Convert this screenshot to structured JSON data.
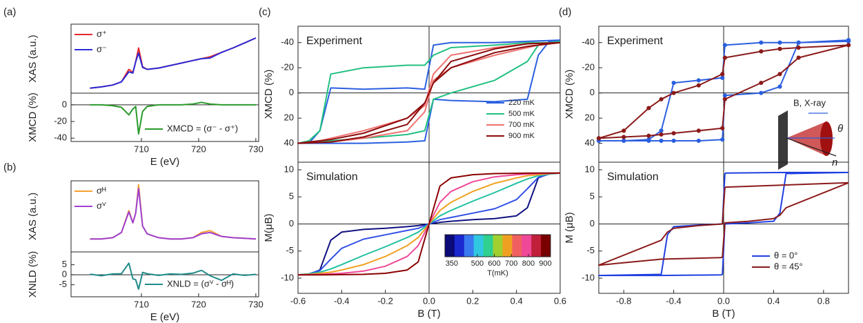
{
  "chart_data": [
    {
      "type": "line",
      "panel_label": "(a)",
      "ylabel": "XAS (a.u.)",
      "xlim": [
        697.7,
        730.5
      ],
      "ylim": [
        0,
        1.1
      ],
      "x": [
        701,
        703,
        705,
        706.5,
        707.8,
        708.5,
        709,
        709.5,
        710.2,
        711,
        713,
        715,
        717,
        719,
        720.5,
        722,
        724,
        726,
        728,
        730
      ],
      "series": [
        {
          "name": "σ⁺",
          "color": "#e8262a",
          "values": [
            0.08,
            0.1,
            0.13,
            0.18,
            0.38,
            0.33,
            0.5,
            0.72,
            0.42,
            0.38,
            0.4,
            0.44,
            0.48,
            0.52,
            0.55,
            0.58,
            0.65,
            0.72,
            0.8,
            0.88
          ]
        },
        {
          "name": "σ⁻",
          "color": "#2b2bd6",
          "values": [
            0.08,
            0.1,
            0.13,
            0.18,
            0.34,
            0.32,
            0.5,
            0.64,
            0.41,
            0.38,
            0.4,
            0.44,
            0.48,
            0.52,
            0.55,
            0.56,
            0.65,
            0.72,
            0.8,
            0.88
          ]
        }
      ],
      "legend": "upper left"
    },
    {
      "type": "line",
      "ylabel": "XMCD (%)",
      "xlabel": "E (eV)",
      "xlim": [
        697.7,
        730.5
      ],
      "xticks": [
        710,
        720,
        730
      ],
      "ylim": [
        -44,
        14
      ],
      "yticks": [
        0,
        -20,
        -40
      ],
      "x": [
        701,
        703,
        705,
        706.5,
        707.8,
        708.5,
        709,
        709.5,
        710.2,
        711,
        713,
        715,
        717,
        719,
        720.5,
        722,
        724,
        726,
        728,
        730
      ],
      "series": [
        {
          "name": "XMCD = (σ⁻ - σ⁺)",
          "color": "#2a9a2a",
          "values": [
            0,
            0,
            -1,
            -3,
            -12,
            -5,
            -2,
            -35,
            -8,
            -2,
            0,
            0,
            0,
            1,
            3,
            1,
            0,
            0,
            0,
            0
          ]
        }
      ],
      "legend": "lower center"
    },
    {
      "type": "line",
      "panel_label": "(b)",
      "ylabel": "XAS (a.u.)",
      "xlim": [
        697.7,
        730.5
      ],
      "ylim": [
        0,
        1.1
      ],
      "x": [
        701,
        703,
        705,
        706.5,
        707.8,
        708.5,
        709,
        709.5,
        710.2,
        711,
        713,
        715,
        717,
        719,
        720.5,
        722,
        724,
        726,
        728,
        730
      ],
      "series": [
        {
          "name": "σᴴ",
          "color": "#f5a030",
          "values": [
            0.2,
            0.2,
            0.22,
            0.3,
            0.64,
            0.45,
            0.6,
            1.04,
            0.4,
            0.28,
            0.22,
            0.2,
            0.2,
            0.22,
            0.3,
            0.33,
            0.24,
            0.22,
            0.21,
            0.2
          ]
        },
        {
          "name": "σⱽ",
          "color": "#a040d0",
          "values": [
            0.2,
            0.2,
            0.22,
            0.3,
            0.62,
            0.45,
            0.6,
            0.98,
            0.4,
            0.28,
            0.22,
            0.2,
            0.2,
            0.22,
            0.28,
            0.3,
            0.24,
            0.22,
            0.21,
            0.2
          ]
        }
      ],
      "legend": "upper left"
    },
    {
      "type": "line",
      "ylabel": "XNLD (%)",
      "xlabel": "E (eV)",
      "xlim": [
        697.7,
        730.5
      ],
      "xticks": [
        710,
        720,
        730
      ],
      "ylim": [
        -11,
        11.4
      ],
      "yticks": [
        5,
        0,
        -5
      ],
      "x": [
        701,
        703,
        705,
        706.5,
        707.8,
        708.5,
        709,
        709.5,
        710.2,
        711,
        713,
        715,
        717,
        719,
        720.5,
        722,
        724,
        726,
        728,
        730
      ],
      "series": [
        {
          "name": "XNLD = (σⱽ - σᴴ)",
          "color": "#1f8a8a",
          "values": [
            0.3,
            -0.5,
            0.4,
            0.5,
            5.8,
            -2,
            -2.5,
            -7.2,
            1.2,
            0.5,
            -0.3,
            0.4,
            0.2,
            0.8,
            2.2,
            -0.5,
            -2.8,
            0.4,
            -0.3,
            0.2
          ]
        }
      ],
      "legend": "lower center"
    },
    {
      "type": "line",
      "panel_label": "(c)",
      "annotation": "Experiment",
      "ylabel": "XMCD (%)",
      "xlim": [
        -0.6,
        0.6
      ],
      "ylim": [
        55,
        -53
      ],
      "yticks": [
        -40,
        -20,
        0,
        20,
        40
      ],
      "x": [
        0.6,
        0.45,
        0.3,
        0.1,
        0.02,
        -0.02,
        -0.1,
        -0.3,
        -0.45,
        -0.5,
        -0.55,
        -0.6,
        -0.6,
        -0.45,
        -0.3,
        -0.1,
        -0.02,
        0.02,
        0.1,
        0.3,
        0.45,
        0.5,
        0.55,
        0.6
      ],
      "series": [
        {
          "name": "220 mK",
          "color": "#2b5fe0",
          "values": [
            -42,
            -41,
            -40,
            -40,
            -38,
            -3,
            -4,
            -3,
            -4,
            30,
            40,
            40,
            40,
            40,
            40,
            39,
            38,
            5,
            6,
            7,
            5,
            -30,
            -41,
            -42
          ]
        },
        {
          "name": "500 mK",
          "color": "#20c080",
          "values": [
            -40,
            -40,
            -38,
            -36,
            -30,
            -22,
            -22,
            -20,
            -15,
            30,
            38,
            40,
            40,
            38,
            36,
            33,
            30,
            5,
            0,
            -10,
            -25,
            -38,
            -40,
            -41
          ]
        },
        {
          "name": "700 mK",
          "color": "#f07070",
          "values": [
            -40,
            -39,
            -36,
            -30,
            -15,
            10,
            20,
            30,
            36,
            38,
            39,
            40,
            40,
            39,
            36,
            30,
            15,
            -10,
            -20,
            -30,
            -36,
            -38,
            -39,
            -40
          ]
        },
        {
          "name": "900 mK",
          "color": "#8b0a0a",
          "values": [
            -40,
            -39,
            -35,
            -25,
            -8,
            8,
            20,
            32,
            37,
            38,
            39,
            40,
            40,
            39,
            35,
            25,
            8,
            -8,
            -20,
            -32,
            -37,
            -38,
            -39,
            -40
          ]
        }
      ],
      "legend": "lower right"
    },
    {
      "type": "line",
      "annotation": "Simulation",
      "ylabel": "M(μB)",
      "xlabel": "B (T)",
      "xlim": [
        -0.6,
        0.6
      ],
      "xticks": [
        -0.6,
        -0.4,
        -0.2,
        {
          "value": 0,
          "label": "0.0"
        },
        0.2,
        0.4,
        0.6
      ],
      "ylim": [
        -12.8,
        11.4
      ],
      "yticks": [
        -10,
        -5,
        0,
        5,
        10
      ],
      "x": [
        -0.6,
        -0.55,
        -0.5,
        -0.45,
        -0.4,
        -0.3,
        -0.2,
        -0.1,
        -0.05,
        0,
        0.05,
        0.1,
        0.2,
        0.3,
        0.4,
        0.45,
        0.5,
        0.55,
        0.6
      ],
      "series": [
        {
          "color": "#101080",
          "values": [
            -9.4,
            -9.3,
            -8.5,
            -3,
            -1.5,
            -1.0,
            -0.8,
            -0.5,
            -0.3,
            0,
            0.3,
            0.5,
            0.8,
            1.0,
            1.5,
            3,
            8.5,
            9.3,
            9.4
          ]
        },
        {
          "color": "#3050e8",
          "values": [
            -9.4,
            -9.2,
            -8.6,
            -6.5,
            -4.5,
            -2.8,
            -2,
            -1.2,
            -0.8,
            0,
            0.8,
            1.2,
            2,
            2.8,
            4.5,
            6.5,
            8.6,
            9.2,
            9.4
          ]
        },
        {
          "color": "#20c0a0",
          "values": [
            -9.4,
            -9.2,
            -8.9,
            -8.3,
            -7.5,
            -5.8,
            -4.2,
            -2.5,
            -1.5,
            0,
            1.5,
            2.5,
            4.2,
            5.8,
            7.5,
            8.3,
            8.9,
            9.2,
            9.4
          ]
        },
        {
          "color": "#f0a020",
          "values": [
            -9.4,
            -9.3,
            -9.1,
            -8.9,
            -8.5,
            -7.5,
            -6,
            -4,
            -2.5,
            0,
            2.5,
            4,
            6,
            7.5,
            8.5,
            8.9,
            9.1,
            9.3,
            9.4
          ]
        },
        {
          "color": "#f04898",
          "values": [
            -9.4,
            -9.35,
            -9.3,
            -9.2,
            -9.1,
            -8.7,
            -7.8,
            -6,
            -4,
            0,
            4,
            6,
            7.8,
            8.7,
            9.1,
            9.2,
            9.3,
            9.35,
            9.4
          ]
        },
        {
          "color": "#8b0000",
          "values": [
            -9.4,
            -9.4,
            -9.4,
            -9.38,
            -9.35,
            -9.3,
            -9.1,
            -8.5,
            -7,
            0,
            7,
            8.5,
            9.1,
            9.3,
            9.35,
            9.38,
            9.4,
            9.4,
            9.4
          ]
        }
      ],
      "colorbar": {
        "label": "T(mK)",
        "range": [
          310,
          930
        ],
        "ticks": [
          350,
          500,
          600,
          700,
          800,
          900
        ],
        "colors": [
          "#0a0a78",
          "#1a2ad0",
          "#3a7af0",
          "#30c8e0",
          "#30d090",
          "#a0d030",
          "#f0a020",
          "#f06060",
          "#f04898",
          "#c0203a",
          "#7a0000"
        ]
      }
    },
    {
      "type": "line",
      "panel_label": "(d)",
      "annotation": "Experiment",
      "ylabel": "XMCD (%)",
      "xlim": [
        -1,
        1
      ],
      "ylim": [
        55,
        -53
      ],
      "yticks": [
        -40,
        -20,
        0,
        20,
        40
      ],
      "markers": true,
      "x": [
        1,
        0.6,
        0.45,
        0.3,
        0.01,
        -0.01,
        -0.2,
        -0.4,
        -0.5,
        -0.6,
        -0.8,
        -1,
        -1,
        -0.8,
        -0.6,
        -0.5,
        -0.4,
        -0.2,
        -0.01,
        0.01,
        0.3,
        0.45,
        0.6,
        1
      ],
      "series": [
        {
          "color": "#2b5fe0",
          "values": [
            -41,
            -40,
            -40,
            -40,
            -38,
            -12,
            -10,
            -8,
            30,
            37,
            38,
            38,
            38,
            38,
            38,
            38,
            38,
            38,
            37,
            2,
            0,
            -5,
            -40,
            -42
          ]
        },
        {
          "color": "#8b1a1a",
          "values": [
            -38,
            -36,
            -35,
            -33,
            -28,
            -15,
            -6,
            0,
            5,
            12,
            30,
            36,
            36,
            35,
            34,
            33,
            32,
            30,
            28,
            5,
            -8,
            -15,
            -28,
            -38
          ]
        }
      ],
      "inset_labels": [
        "B, X-ray",
        "θ",
        "n"
      ]
    },
    {
      "type": "line",
      "annotation": "Simulation",
      "ylabel": "M (μB)",
      "xlabel": "B (T)",
      "xlim": [
        -1,
        1
      ],
      "xticks": [
        -0.8,
        -0.4,
        {
          "value": 0,
          "label": "0.0"
        },
        0.4,
        0.8
      ],
      "ylim": [
        -12.8,
        11.4
      ],
      "yticks": [
        -10,
        -5,
        0,
        5,
        10
      ],
      "x": [
        1,
        0.5,
        0.02,
        0.01,
        -0.01,
        -0.2,
        -0.4,
        -0.45,
        -0.5,
        -1,
        -1,
        -0.5,
        -0.02,
        -0.01,
        0.01,
        0.2,
        0.4,
        0.45,
        0.5,
        1
      ],
      "series": [
        {
          "name": "θ = 0°",
          "color": "#1f3fe0",
          "values": [
            9.5,
            9.5,
            9.4,
            9.3,
            0,
            -0.2,
            -0.5,
            -2,
            -9.3,
            -9.5,
            -9.5,
            -9.5,
            -9.4,
            -9.3,
            0,
            0.2,
            0.5,
            2,
            9.3,
            9.5
          ]
        },
        {
          "name": "θ = 45°",
          "color": "#8b1a1a",
          "values": [
            7.6,
            7.2,
            6.8,
            6.7,
            0,
            -0.3,
            -0.8,
            -1.5,
            -3,
            -7.6,
            -7.6,
            -6.5,
            -6.2,
            -6.1,
            0.2,
            0.5,
            1.0,
            1.6,
            3,
            7.6
          ]
        }
      ],
      "legend": "lower right"
    }
  ]
}
